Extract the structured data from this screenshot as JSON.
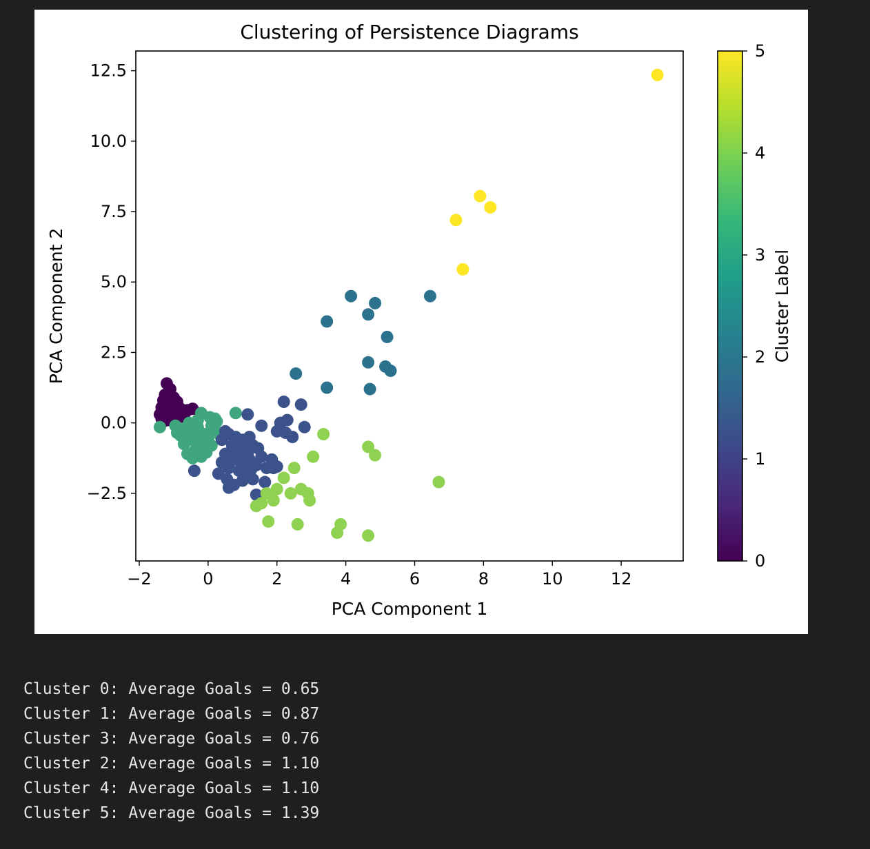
{
  "figure": {
    "chart_data": {
      "type": "scatter",
      "title": "Clustering of Persistence Diagrams",
      "xlabel": "PCA Component 1",
      "ylabel": "PCA Component 2",
      "xlim": [
        -2.1,
        13.8
      ],
      "ylim": [
        -4.9,
        13.2
      ],
      "xticks": [
        -2,
        0,
        2,
        4,
        6,
        8,
        10,
        12
      ],
      "xtick_labels": [
        "−2",
        "0",
        "2",
        "4",
        "6",
        "8",
        "10",
        "12"
      ],
      "yticks": [
        -2.5,
        0,
        2.5,
        5,
        7.5,
        10,
        12.5
      ],
      "ytick_labels": [
        "−2.5",
        "0.0",
        "2.5",
        "5.0",
        "7.5",
        "10.0",
        "12.5"
      ],
      "grid": false,
      "colormap": "viridis",
      "colorbar": {
        "label": "Cluster Label",
        "range": [
          0,
          5
        ],
        "ticks": [
          0,
          1,
          2,
          3,
          4,
          5
        ],
        "tick_labels": [
          "0",
          "1",
          "2",
          "3",
          "4",
          "5"
        ]
      },
      "cluster_colors": {
        "0": "#440154",
        "1": "#3b528b",
        "2": "#2c728e",
        "3": "#3fa67d",
        "4": "#8fd150",
        "5": "#fde725"
      },
      "points": [
        {
          "x": -1.2,
          "y": 1.4,
          "c": 0
        },
        {
          "x": -1.1,
          "y": 1.2,
          "c": 0
        },
        {
          "x": -1.25,
          "y": 1.0,
          "c": 0
        },
        {
          "x": -1.0,
          "y": 0.9,
          "c": 0
        },
        {
          "x": -1.3,
          "y": 0.8,
          "c": 0
        },
        {
          "x": -1.15,
          "y": 0.7,
          "c": 0
        },
        {
          "x": -0.95,
          "y": 0.6,
          "c": 0
        },
        {
          "x": -1.35,
          "y": 0.55,
          "c": 0
        },
        {
          "x": -1.2,
          "y": 0.45,
          "c": 0
        },
        {
          "x": -1.0,
          "y": 0.4,
          "c": 0
        },
        {
          "x": -0.8,
          "y": 0.5,
          "c": 0
        },
        {
          "x": -1.4,
          "y": 0.3,
          "c": 0
        },
        {
          "x": -1.25,
          "y": 0.25,
          "c": 0
        },
        {
          "x": -1.05,
          "y": 0.2,
          "c": 0
        },
        {
          "x": -0.85,
          "y": 0.3,
          "c": 0
        },
        {
          "x": -0.6,
          "y": 0.45,
          "c": 0
        },
        {
          "x": -0.45,
          "y": 0.5,
          "c": 0
        },
        {
          "x": -1.35,
          "y": 0.15,
          "c": 0
        },
        {
          "x": -1.15,
          "y": 0.1,
          "c": 0
        },
        {
          "x": -0.7,
          "y": 0.2,
          "c": 0
        },
        {
          "x": -1.3,
          "y": 0.05,
          "c": 0
        },
        {
          "x": -1.1,
          "y": 0.95,
          "c": 0
        },
        {
          "x": -0.9,
          "y": 0.75,
          "c": 0
        },
        {
          "x": -1.2,
          "y": 0.6,
          "c": 0
        },
        {
          "x": -1.4,
          "y": -0.15,
          "c": 3
        },
        {
          "x": -0.95,
          "y": -0.1,
          "c": 3
        },
        {
          "x": -0.7,
          "y": -0.2,
          "c": 3
        },
        {
          "x": -0.5,
          "y": -0.3,
          "c": 3
        },
        {
          "x": -0.3,
          "y": -0.15,
          "c": 3
        },
        {
          "x": -0.1,
          "y": -0.4,
          "c": 3
        },
        {
          "x": -0.8,
          "y": -0.45,
          "c": 3
        },
        {
          "x": -0.55,
          "y": -0.6,
          "c": 3
        },
        {
          "x": -0.3,
          "y": -0.7,
          "c": 3
        },
        {
          "x": -0.15,
          "y": -0.85,
          "c": 3
        },
        {
          "x": -0.4,
          "y": -1.0,
          "c": 3
        },
        {
          "x": -0.6,
          "y": -1.1,
          "c": 3
        },
        {
          "x": -0.2,
          "y": -1.2,
          "c": 3
        },
        {
          "x": -0.45,
          "y": -1.25,
          "c": 3
        },
        {
          "x": -0.3,
          "y": 0.1,
          "c": 3
        },
        {
          "x": -0.2,
          "y": 0.35,
          "c": 3
        },
        {
          "x": 0.05,
          "y": 0.2,
          "c": 3
        },
        {
          "x": 0.25,
          "y": 0.05,
          "c": 3
        },
        {
          "x": 0.2,
          "y": -0.25,
          "c": 3
        },
        {
          "x": 0.0,
          "y": -0.55,
          "c": 3
        },
        {
          "x": 0.1,
          "y": -0.8,
          "c": 3
        },
        {
          "x": -0.05,
          "y": -1.05,
          "c": 3
        },
        {
          "x": -0.7,
          "y": -0.75,
          "c": 3
        },
        {
          "x": -0.9,
          "y": -0.35,
          "c": 3
        },
        {
          "x": 0.2,
          "y": 0.15,
          "c": 3
        },
        {
          "x": 0.8,
          "y": 0.35,
          "c": 3
        },
        {
          "x": 0.35,
          "y": -0.45,
          "c": 3
        },
        {
          "x": -0.25,
          "y": -0.45,
          "c": 3
        },
        {
          "x": 0.1,
          "y": -0.1,
          "c": 3
        },
        {
          "x": -0.55,
          "y": 0.0,
          "c": 3
        },
        {
          "x": 0.4,
          "y": -0.6,
          "c": 1
        },
        {
          "x": 0.6,
          "y": -0.4,
          "c": 1
        },
        {
          "x": 0.8,
          "y": -0.5,
          "c": 1
        },
        {
          "x": 1.0,
          "y": -0.6,
          "c": 1
        },
        {
          "x": 1.2,
          "y": -0.5,
          "c": 1
        },
        {
          "x": 0.7,
          "y": -0.8,
          "c": 1
        },
        {
          "x": 0.9,
          "y": -1.0,
          "c": 1
        },
        {
          "x": 1.1,
          "y": -0.9,
          "c": 1
        },
        {
          "x": 1.3,
          "y": -0.8,
          "c": 1
        },
        {
          "x": 0.5,
          "y": -1.1,
          "c": 1
        },
        {
          "x": 0.8,
          "y": -1.3,
          "c": 1
        },
        {
          "x": 1.0,
          "y": -1.4,
          "c": 1
        },
        {
          "x": 1.2,
          "y": -1.3,
          "c": 1
        },
        {
          "x": 0.4,
          "y": -1.4,
          "c": 1
        },
        {
          "x": 0.6,
          "y": -1.6,
          "c": 1
        },
        {
          "x": 0.9,
          "y": -1.7,
          "c": 1
        },
        {
          "x": 1.1,
          "y": -1.8,
          "c": 1
        },
        {
          "x": 1.4,
          "y": -1.5,
          "c": 1
        },
        {
          "x": 0.3,
          "y": -1.8,
          "c": 1
        },
        {
          "x": 0.55,
          "y": -2.0,
          "c": 1
        },
        {
          "x": 0.75,
          "y": -2.2,
          "c": 1
        },
        {
          "x": 1.0,
          "y": -2.05,
          "c": 1
        },
        {
          "x": 1.3,
          "y": -2.0,
          "c": 1
        },
        {
          "x": 1.55,
          "y": -1.2,
          "c": 1
        },
        {
          "x": 1.7,
          "y": -1.6,
          "c": 1
        },
        {
          "x": 0.5,
          "y": -0.3,
          "c": 1
        },
        {
          "x": 1.45,
          "y": -0.9,
          "c": 1
        },
        {
          "x": 0.65,
          "y": -1.2,
          "c": 1
        },
        {
          "x": 0.85,
          "y": -0.7,
          "c": 1
        },
        {
          "x": 1.15,
          "y": -1.1,
          "c": 1
        },
        {
          "x": -0.4,
          "y": -1.7,
          "c": 1
        },
        {
          "x": 1.15,
          "y": 0.3,
          "c": 1
        },
        {
          "x": 1.55,
          "y": -0.1,
          "c": 1
        },
        {
          "x": 1.9,
          "y": -1.6,
          "c": 1
        },
        {
          "x": 2.2,
          "y": 0.75,
          "c": 1
        },
        {
          "x": 2.1,
          "y": 0.0,
          "c": 1
        },
        {
          "x": 2.3,
          "y": 0.1,
          "c": 1
        },
        {
          "x": 2.0,
          "y": -0.3,
          "c": 1
        },
        {
          "x": 2.25,
          "y": -0.35,
          "c": 1
        },
        {
          "x": 2.45,
          "y": -0.5,
          "c": 1
        },
        {
          "x": 2.7,
          "y": 0.65,
          "c": 1
        },
        {
          "x": 2.8,
          "y": -0.15,
          "c": 1
        },
        {
          "x": 1.85,
          "y": -1.3,
          "c": 1
        },
        {
          "x": 2.0,
          "y": -1.55,
          "c": 1
        },
        {
          "x": 1.4,
          "y": -2.55,
          "c": 1
        },
        {
          "x": 1.65,
          "y": -2.1,
          "c": 1
        },
        {
          "x": 0.6,
          "y": -2.3,
          "c": 1
        },
        {
          "x": 1.25,
          "y": -1.65,
          "c": 1
        },
        {
          "x": 2.55,
          "y": 1.75,
          "c": 2
        },
        {
          "x": 3.45,
          "y": 1.25,
          "c": 2
        },
        {
          "x": 3.45,
          "y": 3.6,
          "c": 2
        },
        {
          "x": 4.15,
          "y": 4.5,
          "c": 2
        },
        {
          "x": 4.65,
          "y": 3.85,
          "c": 2
        },
        {
          "x": 4.85,
          "y": 4.25,
          "c": 2
        },
        {
          "x": 5.2,
          "y": 3.05,
          "c": 2
        },
        {
          "x": 4.65,
          "y": 2.15,
          "c": 2
        },
        {
          "x": 5.15,
          "y": 2.0,
          "c": 2
        },
        {
          "x": 5.3,
          "y": 1.85,
          "c": 2
        },
        {
          "x": 4.7,
          "y": 1.2,
          "c": 2
        },
        {
          "x": 6.45,
          "y": 4.5,
          "c": 2
        },
        {
          "x": 3.35,
          "y": -0.4,
          "c": 4
        },
        {
          "x": 4.65,
          "y": -0.85,
          "c": 4
        },
        {
          "x": 4.85,
          "y": -1.15,
          "c": 4
        },
        {
          "x": 3.05,
          "y": -1.2,
          "c": 4
        },
        {
          "x": 2.5,
          "y": -1.6,
          "c": 4
        },
        {
          "x": 2.2,
          "y": -1.95,
          "c": 4
        },
        {
          "x": 2.0,
          "y": -2.35,
          "c": 4
        },
        {
          "x": 2.4,
          "y": -2.5,
          "c": 4
        },
        {
          "x": 2.7,
          "y": -2.35,
          "c": 4
        },
        {
          "x": 2.9,
          "y": -2.5,
          "c": 4
        },
        {
          "x": 2.95,
          "y": -2.75,
          "c": 4
        },
        {
          "x": 1.7,
          "y": -2.5,
          "c": 4
        },
        {
          "x": 1.9,
          "y": -2.75,
          "c": 4
        },
        {
          "x": 1.55,
          "y": -2.85,
          "c": 4
        },
        {
          "x": 1.4,
          "y": -2.95,
          "c": 4
        },
        {
          "x": 1.75,
          "y": -3.5,
          "c": 4
        },
        {
          "x": 2.6,
          "y": -3.6,
          "c": 4
        },
        {
          "x": 3.85,
          "y": -3.6,
          "c": 4
        },
        {
          "x": 3.75,
          "y": -3.9,
          "c": 4
        },
        {
          "x": 4.65,
          "y": -4.0,
          "c": 4
        },
        {
          "x": 6.7,
          "y": -2.1,
          "c": 4
        },
        {
          "x": 7.2,
          "y": 7.2,
          "c": 5
        },
        {
          "x": 7.9,
          "y": 8.05,
          "c": 5
        },
        {
          "x": 8.2,
          "y": 7.65,
          "c": 5
        },
        {
          "x": 7.4,
          "y": 5.45,
          "c": 5
        },
        {
          "x": 13.05,
          "y": 12.35,
          "c": 5
        }
      ]
    }
  },
  "output": {
    "lines": [
      "Cluster 0: Average Goals = 0.65",
      "Cluster 1: Average Goals = 0.87",
      "Cluster 3: Average Goals = 0.76",
      "Cluster 2: Average Goals = 1.10",
      "Cluster 4: Average Goals = 1.10",
      "Cluster 5: Average Goals = 1.39"
    ]
  }
}
